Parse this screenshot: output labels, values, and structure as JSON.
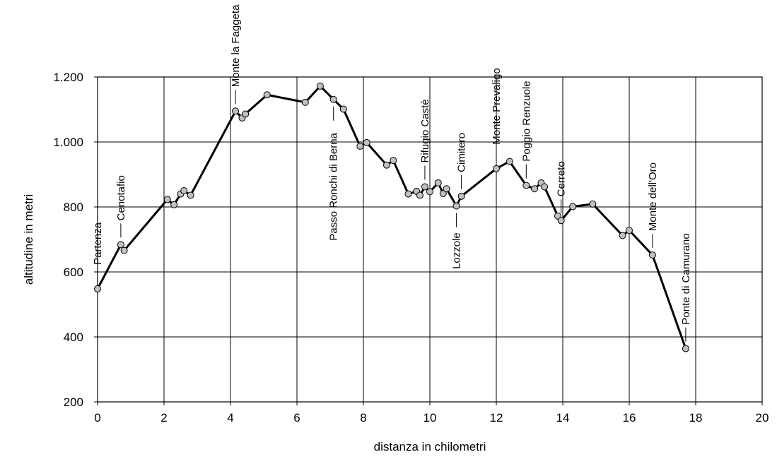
{
  "chart_data": {
    "type": "line",
    "xlabel": "distanza in chilometri",
    "ylabel": "altitudine  in metri",
    "xlim": [
      0,
      20
    ],
    "ylim": [
      200,
      1200
    ],
    "xticks": [
      0,
      2,
      4,
      6,
      8,
      10,
      12,
      14,
      16,
      18,
      20
    ],
    "yticks": [
      200,
      400,
      600,
      800,
      1000,
      1200
    ],
    "ytick_labels": [
      "200",
      "400",
      "600",
      "800",
      "1.000",
      "1.200"
    ],
    "grid": true,
    "legend": "none",
    "series": [
      {
        "points": [
          [
            0.0,
            548
          ],
          [
            0.7,
            684
          ],
          [
            0.8,
            666
          ],
          [
            2.1,
            823
          ],
          [
            2.3,
            807
          ],
          [
            2.5,
            840
          ],
          [
            2.6,
            850
          ],
          [
            2.8,
            836
          ],
          [
            4.15,
            1095
          ],
          [
            4.35,
            1074
          ],
          [
            4.45,
            1086
          ],
          [
            5.1,
            1145
          ],
          [
            6.25,
            1122
          ],
          [
            6.7,
            1172
          ],
          [
            7.1,
            1131
          ],
          [
            7.4,
            1101
          ],
          [
            7.9,
            987
          ],
          [
            8.1,
            998
          ],
          [
            8.7,
            929
          ],
          [
            8.9,
            943
          ],
          [
            9.35,
            840
          ],
          [
            9.6,
            848
          ],
          [
            9.7,
            836
          ],
          [
            9.85,
            862
          ],
          [
            10.0,
            847
          ],
          [
            10.25,
            874
          ],
          [
            10.4,
            841
          ],
          [
            10.5,
            856
          ],
          [
            10.8,
            803
          ],
          [
            10.95,
            833
          ],
          [
            12.0,
            918
          ],
          [
            12.4,
            940
          ],
          [
            12.9,
            866
          ],
          [
            13.15,
            856
          ],
          [
            13.35,
            874
          ],
          [
            13.45,
            862
          ],
          [
            13.85,
            772
          ],
          [
            13.95,
            758
          ],
          [
            14.3,
            801
          ],
          [
            14.9,
            809
          ],
          [
            15.8,
            712
          ],
          [
            16.0,
            728
          ],
          [
            16.7,
            652
          ],
          [
            17.7,
            364
          ]
        ]
      }
    ],
    "annotations": [
      {
        "text": "Partenza",
        "x": 0.0,
        "y": 548
      },
      {
        "text": "Cenotafio",
        "x": 0.7,
        "y": 684
      },
      {
        "text": "Monte la Faggeta",
        "x": 4.15,
        "y": 1095
      },
      {
        "text": "Passo Ronchi di Berna",
        "x": 7.1,
        "y": 1131
      },
      {
        "text": "Rifugio Castè",
        "x": 9.85,
        "y": 862
      },
      {
        "text": "Lozzole",
        "x": 10.8,
        "y": 803
      },
      {
        "text": "Cimitero",
        "x": 10.95,
        "y": 833
      },
      {
        "text": "Monte Prevaligo",
        "x": 12.0,
        "y": 918
      },
      {
        "text": "Poggio Renzuole",
        "x": 12.9,
        "y": 866
      },
      {
        "text": "Cerreto",
        "x": 13.95,
        "y": 758
      },
      {
        "text": "Monte dell'Oro",
        "x": 16.7,
        "y": 652
      },
      {
        "text": "Ponte di Camurano",
        "x": 17.7,
        "y": 364
      }
    ]
  }
}
